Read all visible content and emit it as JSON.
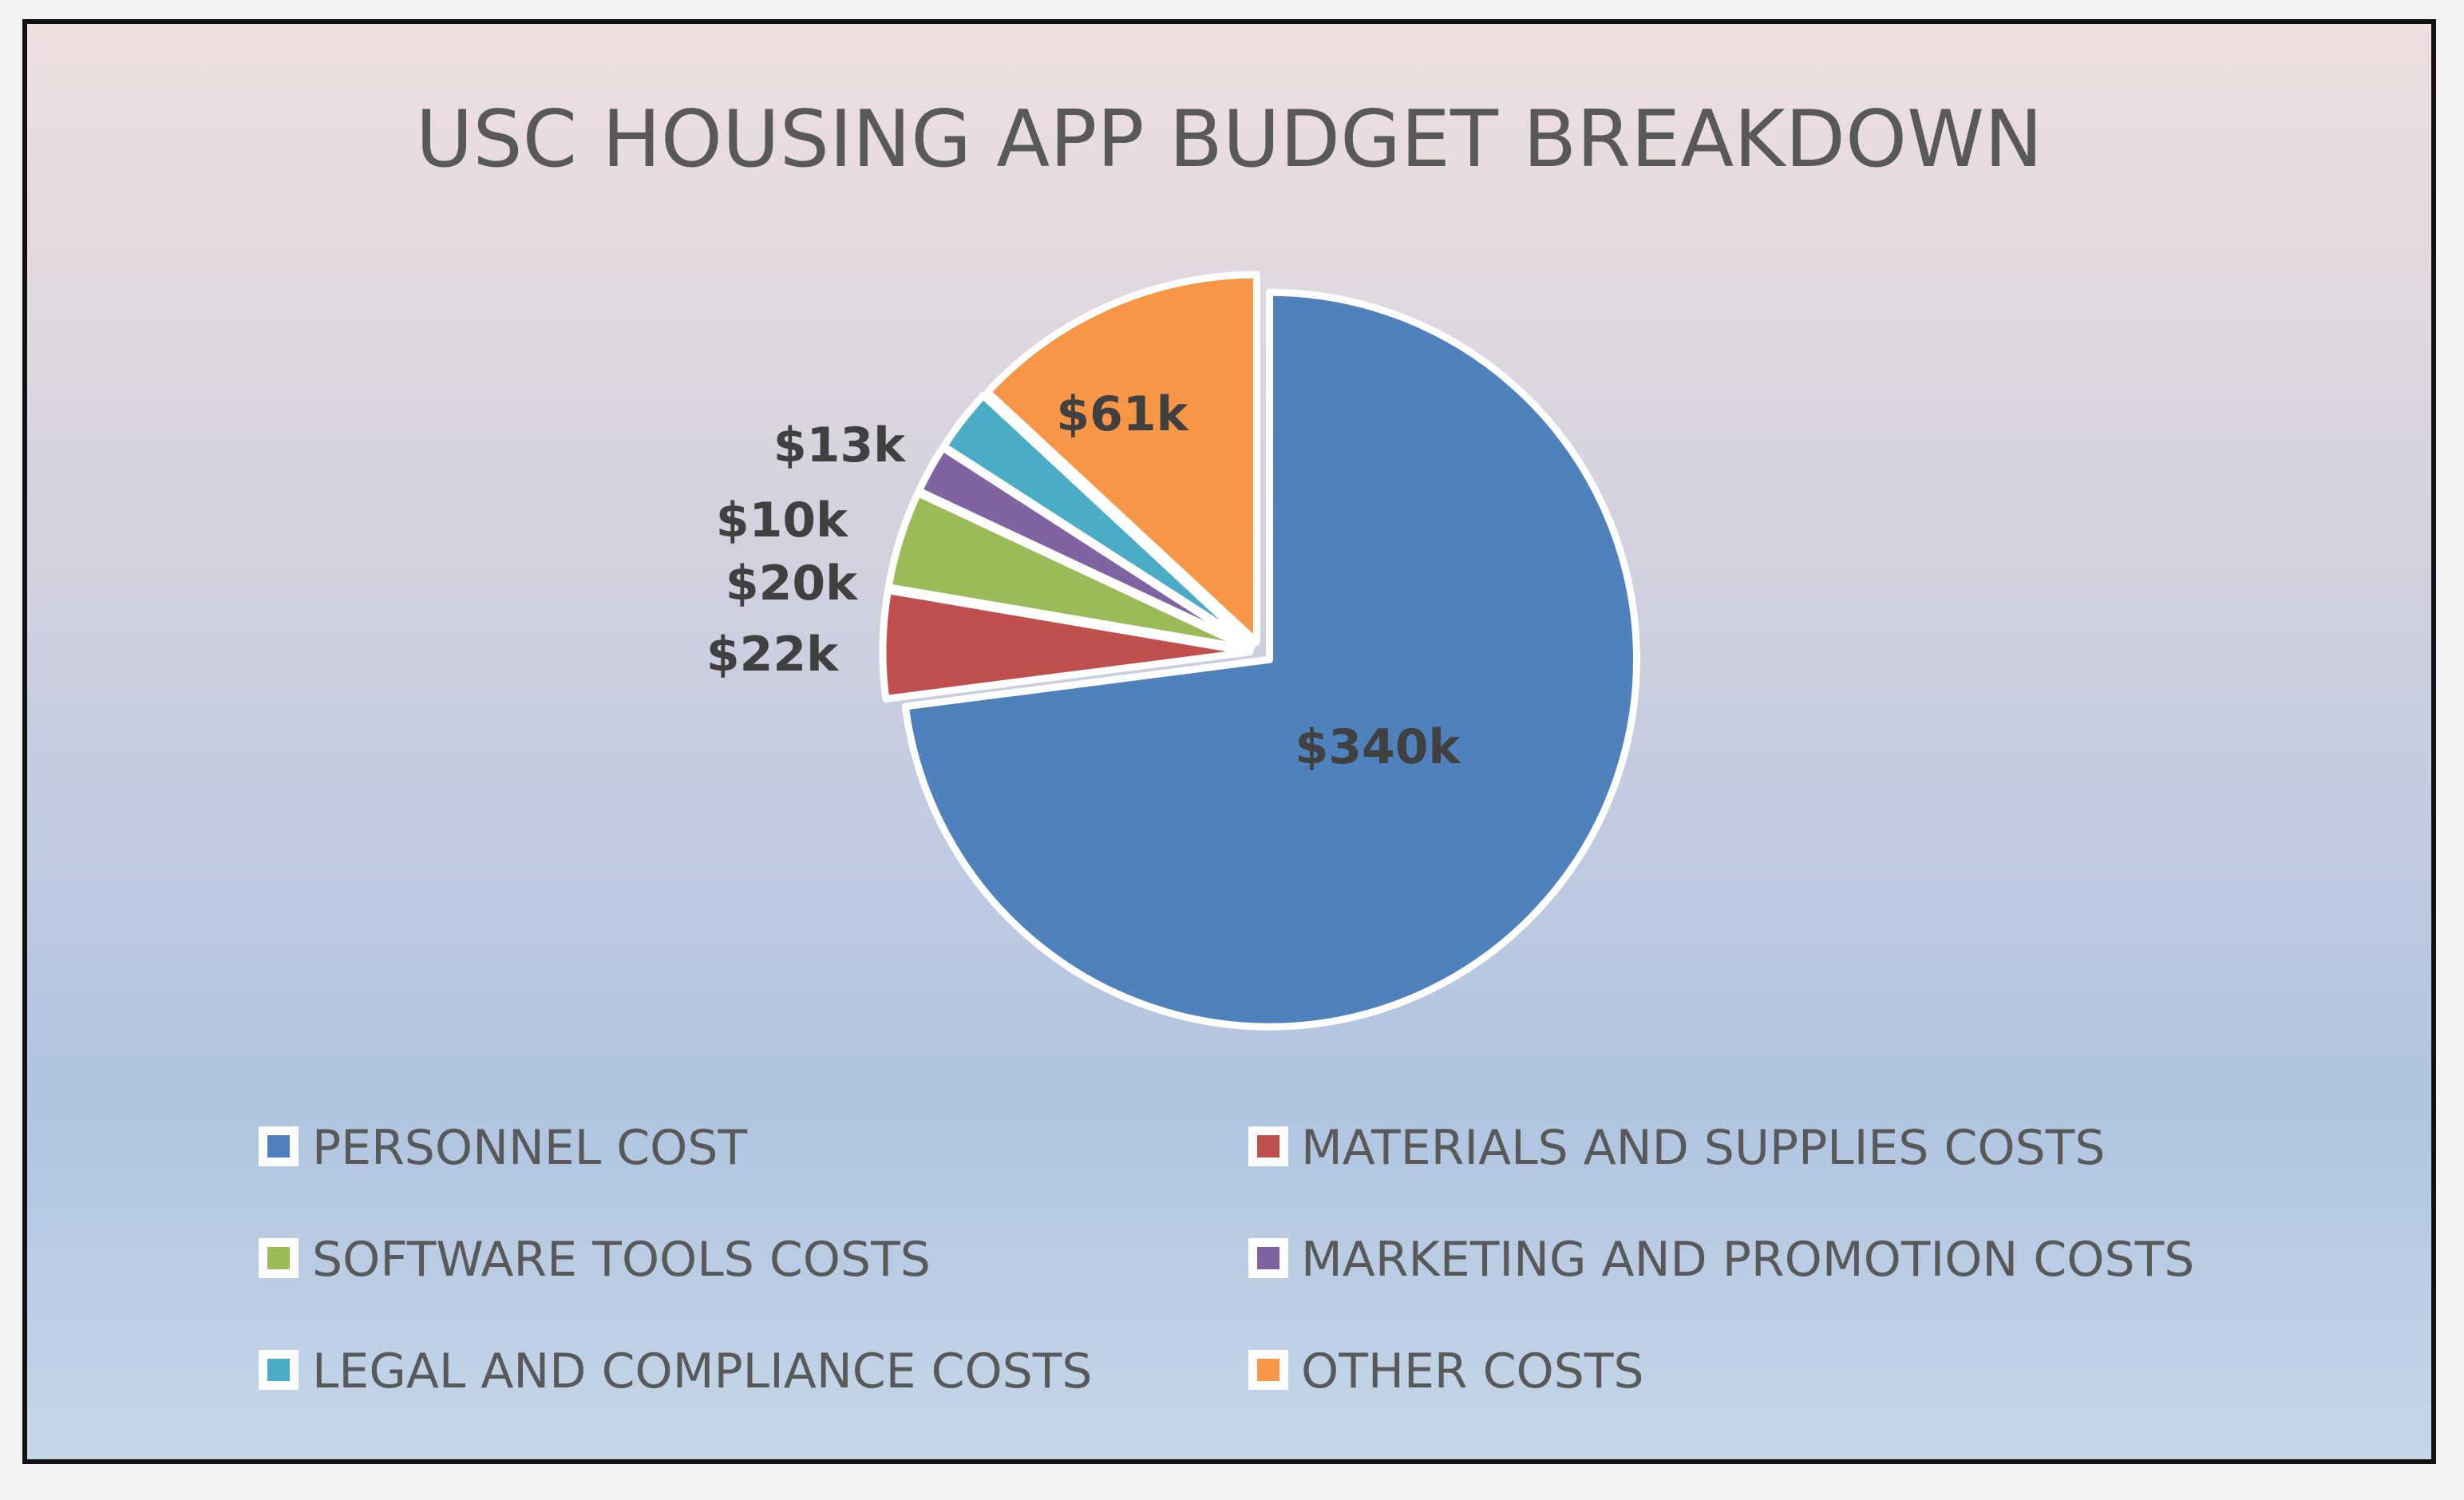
{
  "chart_data": {
    "type": "pie",
    "title": "USC HOUSING APP BUDGET BREAKDOWN",
    "categories": [
      "PERSONNEL COST",
      "MATERIALS AND SUPPLIES COSTS",
      "SOFTWARE TOOLS COSTS",
      "MARKETING AND PROMOTION COSTS",
      "LEGAL AND COMPLIANCE COSTS",
      "OTHER COSTS"
    ],
    "values": [
      340,
      22,
      20,
      10,
      13,
      61
    ],
    "value_labels": [
      "$340k",
      "$22k",
      "$20k",
      "$10k",
      "$13k",
      "$61k"
    ],
    "colors": [
      "#4f81bd",
      "#c0504d",
      "#9bbb59",
      "#8064a2",
      "#4bacc6",
      "#f79646"
    ],
    "exploded": true,
    "legend_position": "bottom"
  }
}
